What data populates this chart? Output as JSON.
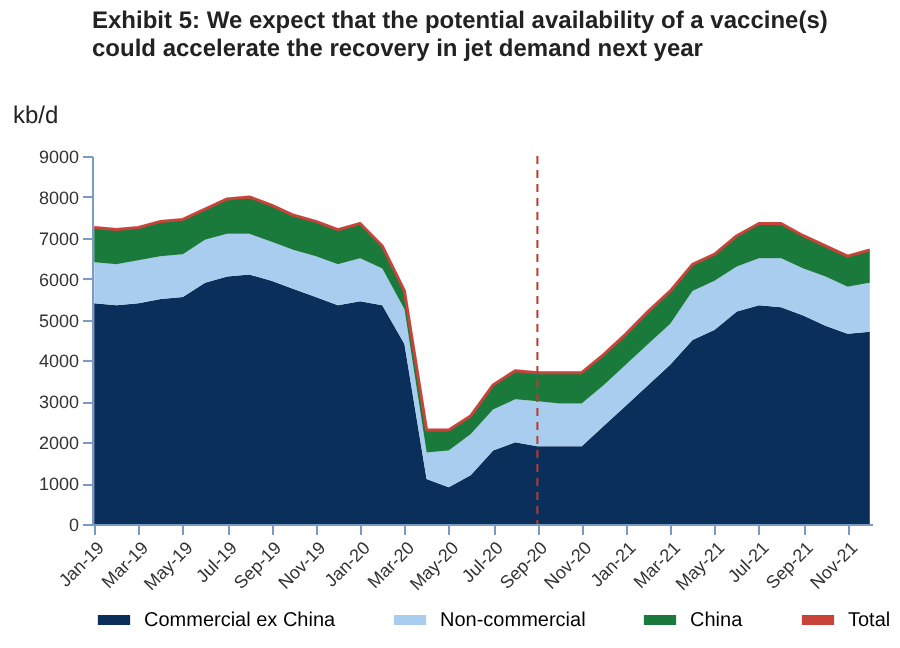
{
  "chart_data": {
    "type": "area",
    "title": "Exhibit 5: We expect that the potential availability of a vaccine(s) could accelerate the recovery in jet demand next year",
    "ylabel": "kb/d",
    "categories": [
      "Jan-19",
      null,
      "Mar-19",
      null,
      "May-19",
      null,
      "Jul-19",
      null,
      "Sep-19",
      null,
      "Nov-19",
      null,
      "Jan-20",
      null,
      "Mar-20",
      null,
      "May-20",
      null,
      "Jul-20",
      null,
      "Sep-20",
      null,
      "Nov-20",
      null,
      "Jan-21",
      null,
      "Mar-21",
      null,
      "May-21",
      null,
      "Jul-21",
      null,
      "Sep-21",
      null,
      "Nov-21",
      null
    ],
    "stacked": true,
    "series": [
      {
        "name": "Commercial ex China",
        "color": "#0b2f5b",
        "values": [
          5400,
          5350,
          5400,
          5500,
          5550,
          5900,
          6050,
          6100,
          5950,
          5750,
          5550,
          5350,
          5450,
          5350,
          4400,
          1100,
          900,
          1200,
          1800,
          2000,
          1900,
          1900,
          1900,
          2400,
          2900,
          3400,
          3900,
          4500,
          4750,
          5200,
          5350,
          5300,
          5100,
          4850,
          4650,
          4700
        ]
      },
      {
        "name": "Non-commercial",
        "color": "#a9cdee",
        "values": [
          1000,
          1000,
          1050,
          1050,
          1050,
          1050,
          1050,
          1000,
          950,
          950,
          1000,
          1000,
          1050,
          900,
          850,
          650,
          900,
          1000,
          1000,
          1050,
          1100,
          1050,
          1050,
          1000,
          1000,
          1000,
          1000,
          1200,
          1200,
          1100,
          1150,
          1200,
          1150,
          1200,
          1150,
          1200
        ]
      },
      {
        "name": "China",
        "color": "#1a7a3c",
        "values": [
          850,
          850,
          800,
          850,
          850,
          750,
          850,
          900,
          900,
          850,
          850,
          850,
          850,
          550,
          450,
          550,
          500,
          450,
          600,
          700,
          700,
          750,
          750,
          750,
          750,
          800,
          800,
          650,
          650,
          750,
          850,
          850,
          800,
          750,
          750,
          800
        ]
      },
      {
        "name": "Total",
        "type": "line",
        "color": "#c8433a",
        "values": [
          7250,
          7200,
          7250,
          7400,
          7450,
          7700,
          7950,
          8000,
          7800,
          7550,
          7400,
          7200,
          7350,
          6800,
          5700,
          2300,
          2300,
          2650,
          3400,
          3750,
          3700,
          3700,
          3700,
          4150,
          4650,
          5200,
          5700,
          6350,
          6600,
          7050,
          7350,
          7350,
          7050,
          6800,
          6550,
          6700
        ]
      }
    ],
    "ylim": [
      0,
      9000
    ],
    "yticks": [
      0,
      1000,
      2000,
      3000,
      4000,
      5000,
      6000,
      7000,
      8000,
      9000
    ],
    "ref_lines": [
      {
        "axis": "x",
        "value": "Sep-20",
        "color": "#c0392b",
        "line_style": "dashed"
      }
    ],
    "grid": false,
    "legend": "bottom"
  }
}
